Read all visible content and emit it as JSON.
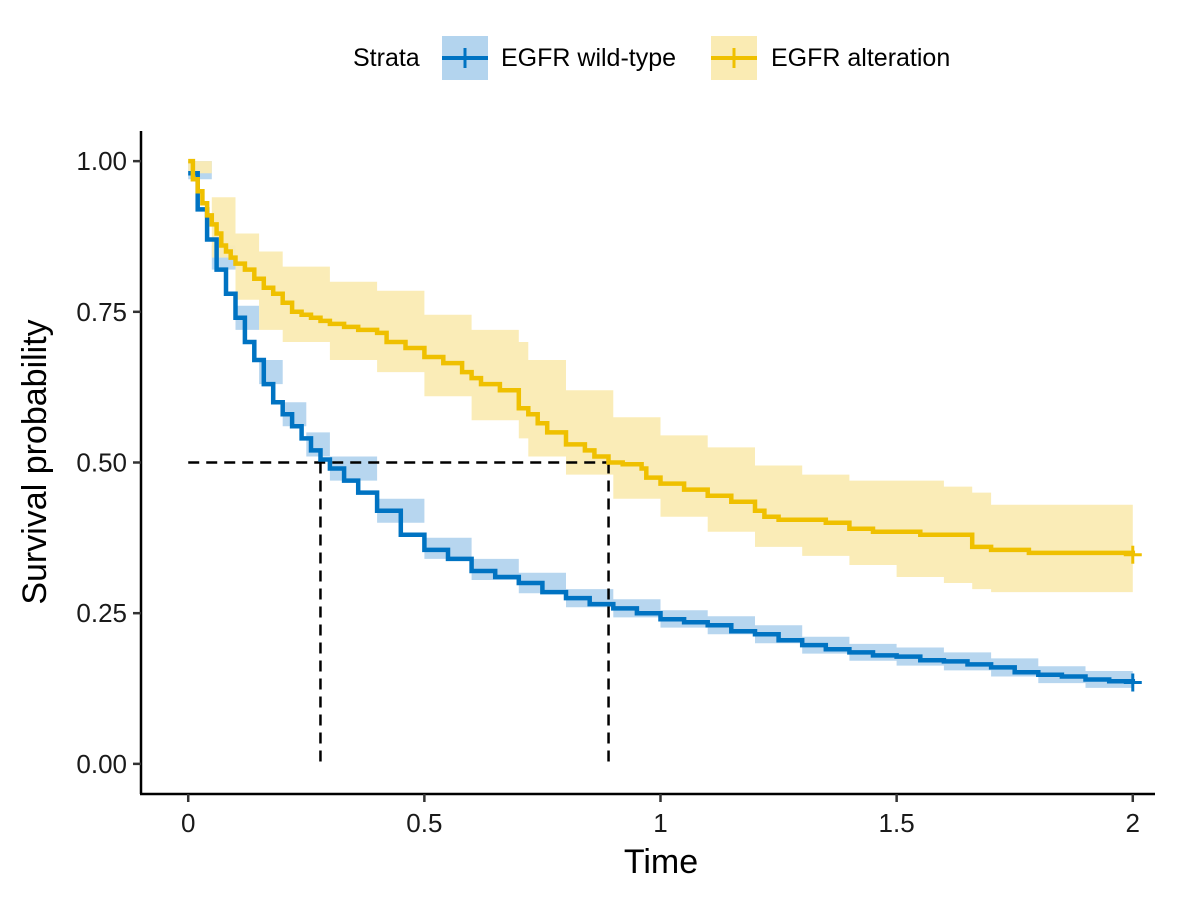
{
  "chart_data": {
    "type": "line",
    "xlabel": "Time",
    "ylabel": "Survival probability",
    "xlim": [
      -0.1,
      2.1
    ],
    "ylim": [
      -0.05,
      1.05
    ],
    "xticks": [
      {
        "value": 0,
        "label": "0"
      },
      {
        "value": 0.5,
        "label": "0.5"
      },
      {
        "value": 1,
        "label": "1"
      },
      {
        "value": 1.5,
        "label": "1.5"
      },
      {
        "value": 2,
        "label": "2"
      }
    ],
    "yticks": [
      {
        "value": 0,
        "label": "0.00"
      },
      {
        "value": 0.25,
        "label": "0.25"
      },
      {
        "value": 0.5,
        "label": "0.50"
      },
      {
        "value": 0.75,
        "label": "0.75"
      },
      {
        "value": 1,
        "label": "1.00"
      }
    ],
    "grid": false,
    "legend": {
      "title": "Strata",
      "position": "top"
    },
    "median_line": {
      "y": 0.5,
      "x_values": [
        0.28,
        0.89
      ]
    },
    "series": [
      {
        "name": "EGFR wild-type",
        "color": "#0073C2",
        "band_color": "#B3D4EE",
        "step": true,
        "points": [
          [
            0,
            0.98
          ],
          [
            0.02,
            0.92
          ],
          [
            0.04,
            0.87
          ],
          [
            0.06,
            0.82
          ],
          [
            0.08,
            0.78
          ],
          [
            0.1,
            0.74
          ],
          [
            0.12,
            0.7
          ],
          [
            0.14,
            0.67
          ],
          [
            0.16,
            0.63
          ],
          [
            0.18,
            0.6
          ],
          [
            0.2,
            0.58
          ],
          [
            0.22,
            0.56
          ],
          [
            0.24,
            0.54
          ],
          [
            0.26,
            0.52
          ],
          [
            0.28,
            0.505
          ],
          [
            0.3,
            0.49
          ],
          [
            0.33,
            0.47
          ],
          [
            0.36,
            0.45
          ],
          [
            0.4,
            0.42
          ],
          [
            0.45,
            0.38
          ],
          [
            0.5,
            0.355
          ],
          [
            0.55,
            0.34
          ],
          [
            0.6,
            0.32
          ],
          [
            0.65,
            0.31
          ],
          [
            0.7,
            0.3
          ],
          [
            0.75,
            0.285
          ],
          [
            0.8,
            0.275
          ],
          [
            0.85,
            0.265
          ],
          [
            0.9,
            0.258
          ],
          [
            0.95,
            0.25
          ],
          [
            1.0,
            0.24
          ],
          [
            1.05,
            0.235
          ],
          [
            1.1,
            0.23
          ],
          [
            1.15,
            0.22
          ],
          [
            1.2,
            0.215
          ],
          [
            1.25,
            0.205
          ],
          [
            1.3,
            0.197
          ],
          [
            1.35,
            0.19
          ],
          [
            1.4,
            0.185
          ],
          [
            1.45,
            0.18
          ],
          [
            1.5,
            0.178
          ],
          [
            1.55,
            0.172
          ],
          [
            1.6,
            0.17
          ],
          [
            1.65,
            0.165
          ],
          [
            1.7,
            0.16
          ],
          [
            1.75,
            0.152
          ],
          [
            1.8,
            0.148
          ],
          [
            1.85,
            0.145
          ],
          [
            1.9,
            0.14
          ],
          [
            1.95,
            0.137
          ],
          [
            2.0,
            0.135
          ]
        ],
        "lower": [
          [
            0,
            0.97
          ],
          [
            0.05,
            0.82
          ],
          [
            0.1,
            0.72
          ],
          [
            0.15,
            0.63
          ],
          [
            0.2,
            0.56
          ],
          [
            0.25,
            0.51
          ],
          [
            0.3,
            0.47
          ],
          [
            0.4,
            0.4
          ],
          [
            0.5,
            0.34
          ],
          [
            0.6,
            0.305
          ],
          [
            0.7,
            0.283
          ],
          [
            0.8,
            0.26
          ],
          [
            0.9,
            0.243
          ],
          [
            1.0,
            0.226
          ],
          [
            1.1,
            0.215
          ],
          [
            1.2,
            0.2
          ],
          [
            1.3,
            0.183
          ],
          [
            1.4,
            0.171
          ],
          [
            1.5,
            0.163
          ],
          [
            1.6,
            0.155
          ],
          [
            1.7,
            0.145
          ],
          [
            1.8,
            0.134
          ],
          [
            1.9,
            0.126
          ],
          [
            2.0,
            0.12
          ]
        ],
        "upper": [
          [
            0,
            1.0
          ],
          [
            0.05,
            0.86
          ],
          [
            0.1,
            0.76
          ],
          [
            0.15,
            0.67
          ],
          [
            0.2,
            0.6
          ],
          [
            0.25,
            0.55
          ],
          [
            0.3,
            0.51
          ],
          [
            0.4,
            0.44
          ],
          [
            0.5,
            0.375
          ],
          [
            0.6,
            0.34
          ],
          [
            0.7,
            0.317
          ],
          [
            0.8,
            0.29
          ],
          [
            0.9,
            0.273
          ],
          [
            1.0,
            0.255
          ],
          [
            1.1,
            0.245
          ],
          [
            1.2,
            0.23
          ],
          [
            1.3,
            0.211
          ],
          [
            1.4,
            0.199
          ],
          [
            1.5,
            0.193
          ],
          [
            1.6,
            0.185
          ],
          [
            1.7,
            0.175
          ],
          [
            1.8,
            0.162
          ],
          [
            1.9,
            0.154
          ],
          [
            2.0,
            0.15
          ]
        ]
      },
      {
        "name": "EGFR alteration",
        "color": "#EFC000",
        "band_color": "#FAEBB3",
        "step": true,
        "points": [
          [
            0,
            1.0
          ],
          [
            0.01,
            0.97
          ],
          [
            0.02,
            0.95
          ],
          [
            0.03,
            0.93
          ],
          [
            0.04,
            0.91
          ],
          [
            0.05,
            0.895
          ],
          [
            0.06,
            0.88
          ],
          [
            0.07,
            0.86
          ],
          [
            0.08,
            0.85
          ],
          [
            0.09,
            0.84
          ],
          [
            0.1,
            0.83
          ],
          [
            0.12,
            0.82
          ],
          [
            0.14,
            0.805
          ],
          [
            0.16,
            0.79
          ],
          [
            0.18,
            0.78
          ],
          [
            0.2,
            0.765
          ],
          [
            0.22,
            0.75
          ],
          [
            0.24,
            0.745
          ],
          [
            0.26,
            0.74
          ],
          [
            0.28,
            0.735
          ],
          [
            0.3,
            0.73
          ],
          [
            0.33,
            0.725
          ],
          [
            0.36,
            0.72
          ],
          [
            0.4,
            0.715
          ],
          [
            0.42,
            0.7
          ],
          [
            0.46,
            0.69
          ],
          [
            0.5,
            0.675
          ],
          [
            0.54,
            0.665
          ],
          [
            0.58,
            0.65
          ],
          [
            0.6,
            0.64
          ],
          [
            0.62,
            0.63
          ],
          [
            0.66,
            0.62
          ],
          [
            0.7,
            0.62
          ],
          [
            0.7,
            0.59
          ],
          [
            0.72,
            0.58
          ],
          [
            0.74,
            0.565
          ],
          [
            0.76,
            0.55
          ],
          [
            0.8,
            0.53
          ],
          [
            0.84,
            0.52
          ],
          [
            0.86,
            0.51
          ],
          [
            0.89,
            0.5
          ],
          [
            0.92,
            0.497
          ],
          [
            0.96,
            0.49
          ],
          [
            0.97,
            0.475
          ],
          [
            1.0,
            0.465
          ],
          [
            1.05,
            0.455
          ],
          [
            1.1,
            0.445
          ],
          [
            1.15,
            0.435
          ],
          [
            1.2,
            0.42
          ],
          [
            1.22,
            0.41
          ],
          [
            1.25,
            0.405
          ],
          [
            1.35,
            0.4
          ],
          [
            1.4,
            0.39
          ],
          [
            1.45,
            0.385
          ],
          [
            1.55,
            0.38
          ],
          [
            1.65,
            0.38
          ],
          [
            1.66,
            0.36
          ],
          [
            1.7,
            0.355
          ],
          [
            1.78,
            0.35
          ],
          [
            2.0,
            0.347
          ]
        ],
        "lower": [
          [
            0,
            0.98
          ],
          [
            0.05,
            0.84
          ],
          [
            0.1,
            0.77
          ],
          [
            0.15,
            0.72
          ],
          [
            0.2,
            0.7
          ],
          [
            0.3,
            0.67
          ],
          [
            0.4,
            0.65
          ],
          [
            0.5,
            0.61
          ],
          [
            0.6,
            0.57
          ],
          [
            0.7,
            0.54
          ],
          [
            0.72,
            0.51
          ],
          [
            0.8,
            0.48
          ],
          [
            0.9,
            0.44
          ],
          [
            1.0,
            0.41
          ],
          [
            1.1,
            0.385
          ],
          [
            1.2,
            0.36
          ],
          [
            1.3,
            0.345
          ],
          [
            1.4,
            0.33
          ],
          [
            1.5,
            0.31
          ],
          [
            1.6,
            0.3
          ],
          [
            1.66,
            0.29
          ],
          [
            1.7,
            0.285
          ],
          [
            2.0,
            0.283
          ]
        ],
        "upper": [
          [
            0,
            1.0
          ],
          [
            0.05,
            0.94
          ],
          [
            0.1,
            0.88
          ],
          [
            0.15,
            0.85
          ],
          [
            0.2,
            0.825
          ],
          [
            0.3,
            0.8
          ],
          [
            0.4,
            0.785
          ],
          [
            0.5,
            0.745
          ],
          [
            0.6,
            0.72
          ],
          [
            0.7,
            0.7
          ],
          [
            0.72,
            0.67
          ],
          [
            0.8,
            0.62
          ],
          [
            0.9,
            0.575
          ],
          [
            1.0,
            0.545
          ],
          [
            1.1,
            0.525
          ],
          [
            1.2,
            0.495
          ],
          [
            1.3,
            0.48
          ],
          [
            1.4,
            0.47
          ],
          [
            1.5,
            0.47
          ],
          [
            1.6,
            0.46
          ],
          [
            1.66,
            0.45
          ],
          [
            1.7,
            0.43
          ],
          [
            2.0,
            0.425
          ]
        ]
      }
    ]
  }
}
